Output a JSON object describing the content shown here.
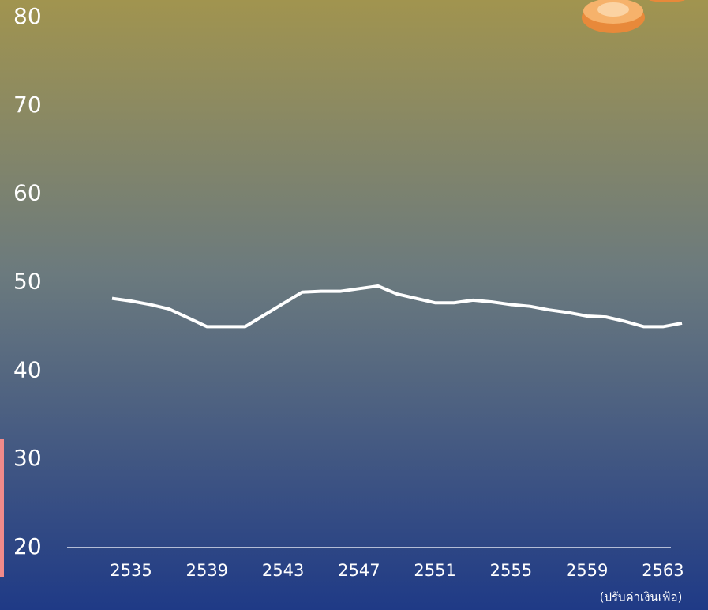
{
  "chart_data": {
    "type": "line",
    "x": [
      2534,
      2535,
      2536,
      2537,
      2538,
      2539,
      2540,
      2541,
      2542,
      2543,
      2544,
      2545,
      2546,
      2547,
      2548,
      2549,
      2550,
      2551,
      2552,
      2553,
      2554,
      2555,
      2556,
      2557,
      2558,
      2559,
      2560,
      2561,
      2562,
      2563,
      2564
    ],
    "series": [
      {
        "color": "#ffffff",
        "values": [
          48.2,
          47.9,
          47.5,
          47.0,
          46.0,
          45.0,
          45.0,
          45.0,
          46.3,
          47.6,
          48.9,
          49.0,
          49.0,
          49.3,
          49.6,
          48.7,
          48.2,
          47.7,
          47.7,
          48.0,
          47.8,
          47.5,
          47.3,
          46.9,
          46.6,
          46.2,
          46.1,
          45.6,
          45.0,
          45.0,
          45.4
        ]
      }
    ],
    "xlim": [
      2534,
      2564
    ],
    "xticks": [
      2535,
      2539,
      2543,
      2547,
      2551,
      2555,
      2559,
      2563
    ],
    "ylim": [
      20,
      80
    ],
    "yticks": [
      20,
      30,
      40,
      50,
      60,
      70,
      80
    ],
    "note": "(ปรับค่าเงินเฟ้อ)"
  }
}
